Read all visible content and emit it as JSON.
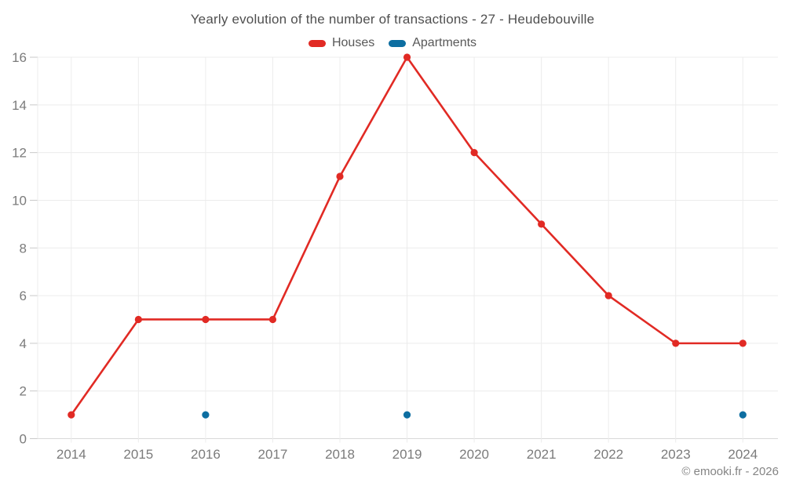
{
  "title": "Yearly evolution of the number of transactions - 27 - Heudebouville",
  "legend": {
    "items": [
      {
        "label": "Houses",
        "color": "#e12a24"
      },
      {
        "label": "Apartments",
        "color": "#0d6ea1"
      }
    ]
  },
  "footer": "© emooki.fr - 2026",
  "colors": {
    "grid": "#ececec",
    "axis_line": "#d8d8d8",
    "tick_stub": "#c9c9c9",
    "tick_text": "#7b7b7b"
  },
  "chart_data": {
    "type": "line",
    "title": "Yearly evolution of the number of transactions - 27 - Heudebouville",
    "xlabel": "",
    "ylabel": "",
    "categories": [
      "2014",
      "2015",
      "2016",
      "2017",
      "2018",
      "2019",
      "2020",
      "2021",
      "2022",
      "2023",
      "2024"
    ],
    "series": [
      {
        "name": "Houses",
        "color": "#e12a24",
        "show_line": true,
        "values": [
          1,
          5,
          5,
          5,
          11,
          16,
          12,
          9,
          6,
          4,
          4
        ]
      },
      {
        "name": "Apartments",
        "color": "#0d6ea1",
        "show_line": false,
        "values": [
          null,
          null,
          1,
          null,
          null,
          1,
          null,
          null,
          null,
          null,
          1
        ]
      }
    ],
    "ylim": [
      0,
      16
    ],
    "ytick_step": 2,
    "grid": true,
    "legend_position": "top"
  }
}
